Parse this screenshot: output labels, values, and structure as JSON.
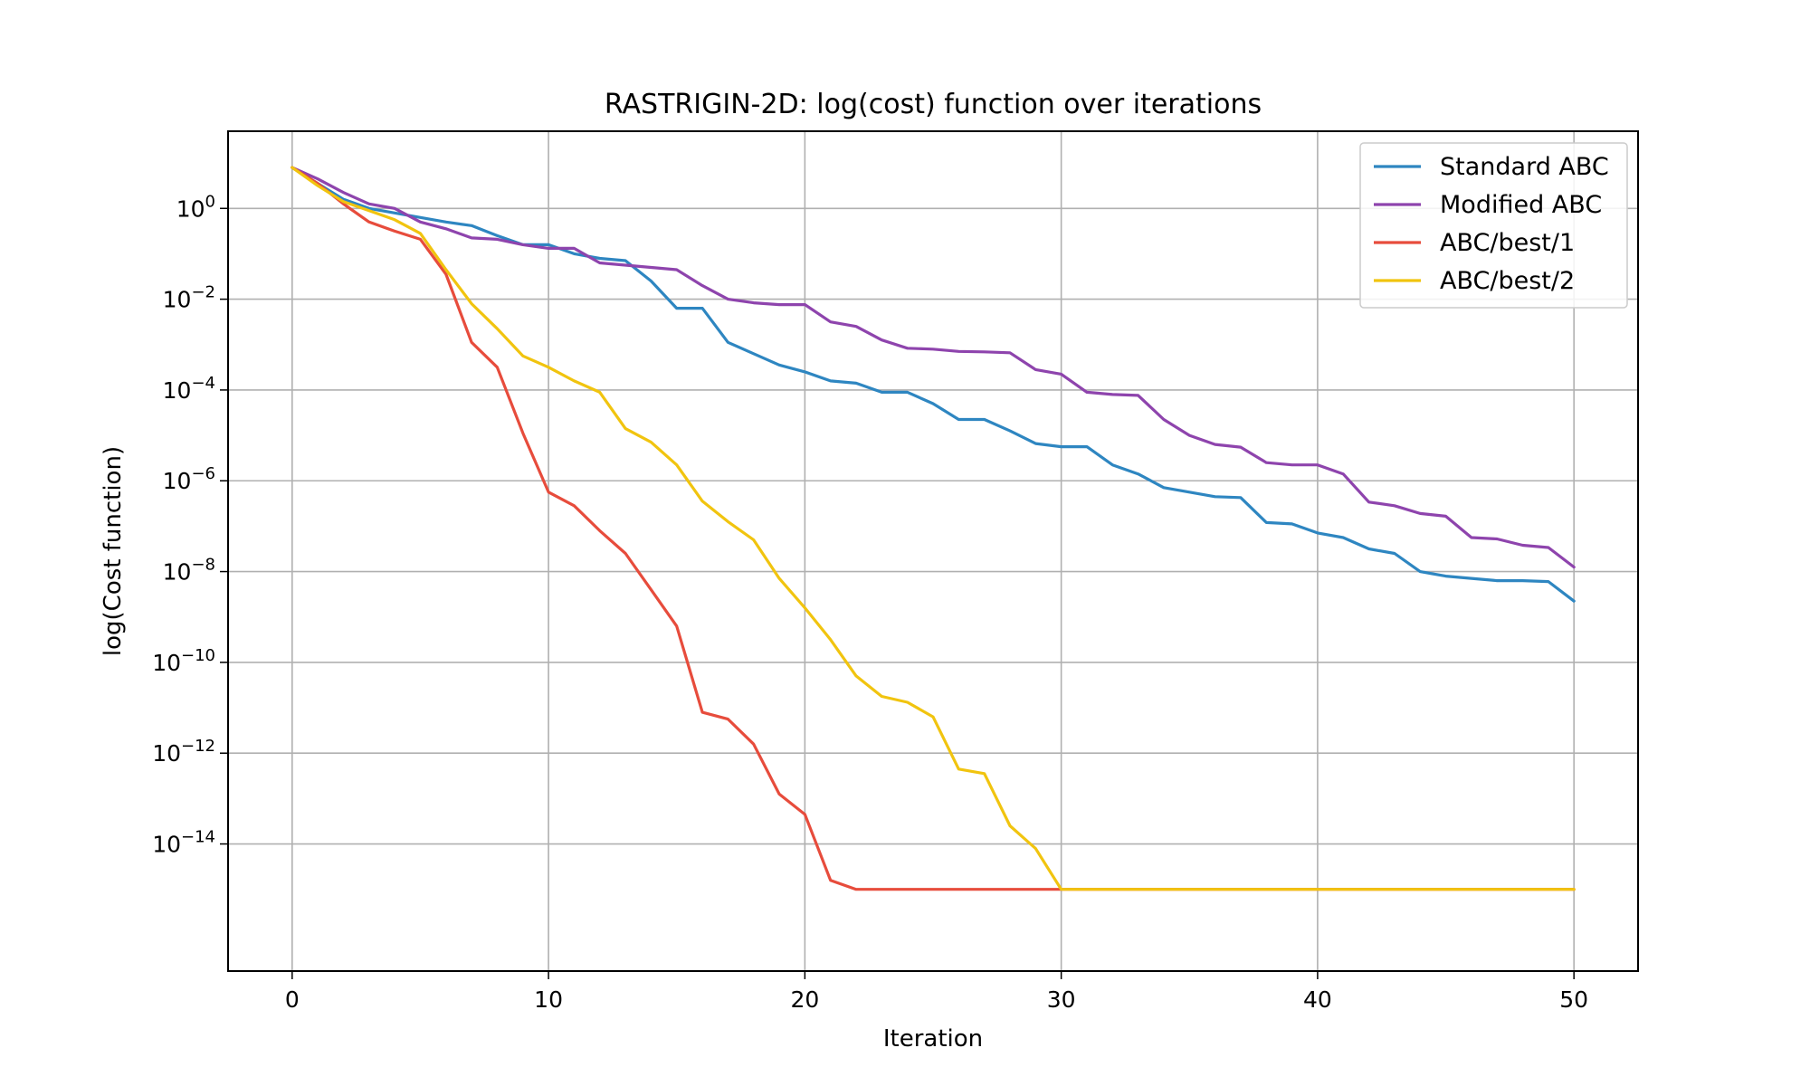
{
  "chart_data": {
    "type": "line",
    "title": "RASTRIGIN-2D: log(cost) function over iterations",
    "xlabel": "Iteration",
    "ylabel": "log(Cost function)",
    "x_scale": "linear",
    "y_scale": "log",
    "xlim": [
      -2.5,
      52.5
    ],
    "ylim_log10": [
      -16.8,
      1.7
    ],
    "xticks": [
      0,
      10,
      20,
      30,
      40,
      50
    ],
    "yticks_exp": [
      0,
      -2,
      -4,
      -6,
      -8,
      -10,
      -12,
      -14
    ],
    "ytick_base": "10",
    "grid": true,
    "legend_position": "top-right",
    "x": [
      0,
      1,
      2,
      3,
      4,
      5,
      6,
      7,
      8,
      9,
      10,
      11,
      12,
      13,
      14,
      15,
      16,
      17,
      18,
      19,
      20,
      21,
      22,
      23,
      24,
      25,
      26,
      27,
      28,
      29,
      30,
      31,
      32,
      33,
      34,
      35,
      36,
      37,
      38,
      39,
      40,
      41,
      42,
      43,
      44,
      45,
      46,
      47,
      48,
      49,
      50
    ],
    "series": [
      {
        "name": "Standard ABC",
        "color": "#2e86c1",
        "log10_values": [
          0.9,
          0.55,
          0.2,
          0.0,
          -0.1,
          -0.2,
          -0.3,
          -0.38,
          -0.6,
          -0.8,
          -0.8,
          -1.0,
          -1.1,
          -1.15,
          -1.6,
          -2.2,
          -2.2,
          -2.95,
          -3.2,
          -3.45,
          -3.6,
          -3.8,
          -3.85,
          -4.05,
          -4.05,
          -4.3,
          -4.65,
          -4.65,
          -4.9,
          -5.18,
          -5.25,
          -5.25,
          -5.65,
          -5.85,
          -6.15,
          -6.25,
          -6.35,
          -6.37,
          -6.92,
          -6.95,
          -7.15,
          -7.25,
          -7.5,
          -7.6,
          -8.0,
          -8.1,
          -8.15,
          -8.2,
          -8.2,
          -8.22,
          -8.65
        ]
      },
      {
        "name": "Modified ABC",
        "color": "#8e44ad",
        "log10_values": [
          0.9,
          0.65,
          0.35,
          0.1,
          0.0,
          -0.3,
          -0.45,
          -0.65,
          -0.68,
          -0.8,
          -0.88,
          -0.88,
          -1.2,
          -1.25,
          -1.3,
          -1.35,
          -1.7,
          -2.0,
          -2.08,
          -2.12,
          -2.12,
          -2.5,
          -2.6,
          -2.9,
          -3.08,
          -3.1,
          -3.15,
          -3.16,
          -3.18,
          -3.55,
          -3.65,
          -4.05,
          -4.1,
          -4.12,
          -4.65,
          -5.0,
          -5.2,
          -5.26,
          -5.6,
          -5.65,
          -5.65,
          -5.85,
          -6.47,
          -6.55,
          -6.72,
          -6.78,
          -7.25,
          -7.28,
          -7.42,
          -7.47,
          -7.9
        ]
      },
      {
        "name": "ABC/best/1",
        "color": "#e74c3c",
        "log10_values": [
          0.9,
          0.55,
          0.1,
          -0.3,
          -0.5,
          -0.68,
          -1.45,
          -2.95,
          -3.5,
          -4.95,
          -6.25,
          -6.55,
          -7.1,
          -7.6,
          -8.4,
          -9.2,
          -11.1,
          -11.25,
          -11.8,
          -12.9,
          -13.35,
          -14.8,
          -15.0,
          -15.0,
          -15.0,
          -15.0,
          -15.0,
          -15.0,
          -15.0,
          -15.0,
          -15.0,
          -15.0,
          -15.0,
          -15.0,
          -15.0,
          -15.0,
          -15.0,
          -15.0,
          -15.0,
          -15.0,
          -15.0,
          -15.0,
          -15.0,
          -15.0,
          -15.0,
          -15.0,
          -15.0,
          -15.0,
          -15.0,
          -15.0,
          -15.0
        ]
      },
      {
        "name": "ABC/best/2",
        "color": "#f1c40f",
        "log10_values": [
          0.9,
          0.5,
          0.15,
          -0.05,
          -0.25,
          -0.55,
          -1.35,
          -2.1,
          -2.65,
          -3.25,
          -3.5,
          -3.8,
          -4.05,
          -4.85,
          -5.15,
          -5.65,
          -6.45,
          -6.9,
          -7.3,
          -8.15,
          -8.8,
          -9.5,
          -10.3,
          -10.75,
          -10.88,
          -11.2,
          -12.35,
          -12.45,
          -13.6,
          -14.1,
          -15.0,
          -15.0,
          -15.0,
          -15.0,
          -15.0,
          -15.0,
          -15.0,
          -15.0,
          -15.0,
          -15.0,
          -15.0,
          -15.0,
          -15.0,
          -15.0,
          -15.0,
          -15.0,
          -15.0,
          -15.0,
          -15.0,
          -15.0,
          -15.0
        ]
      }
    ]
  }
}
